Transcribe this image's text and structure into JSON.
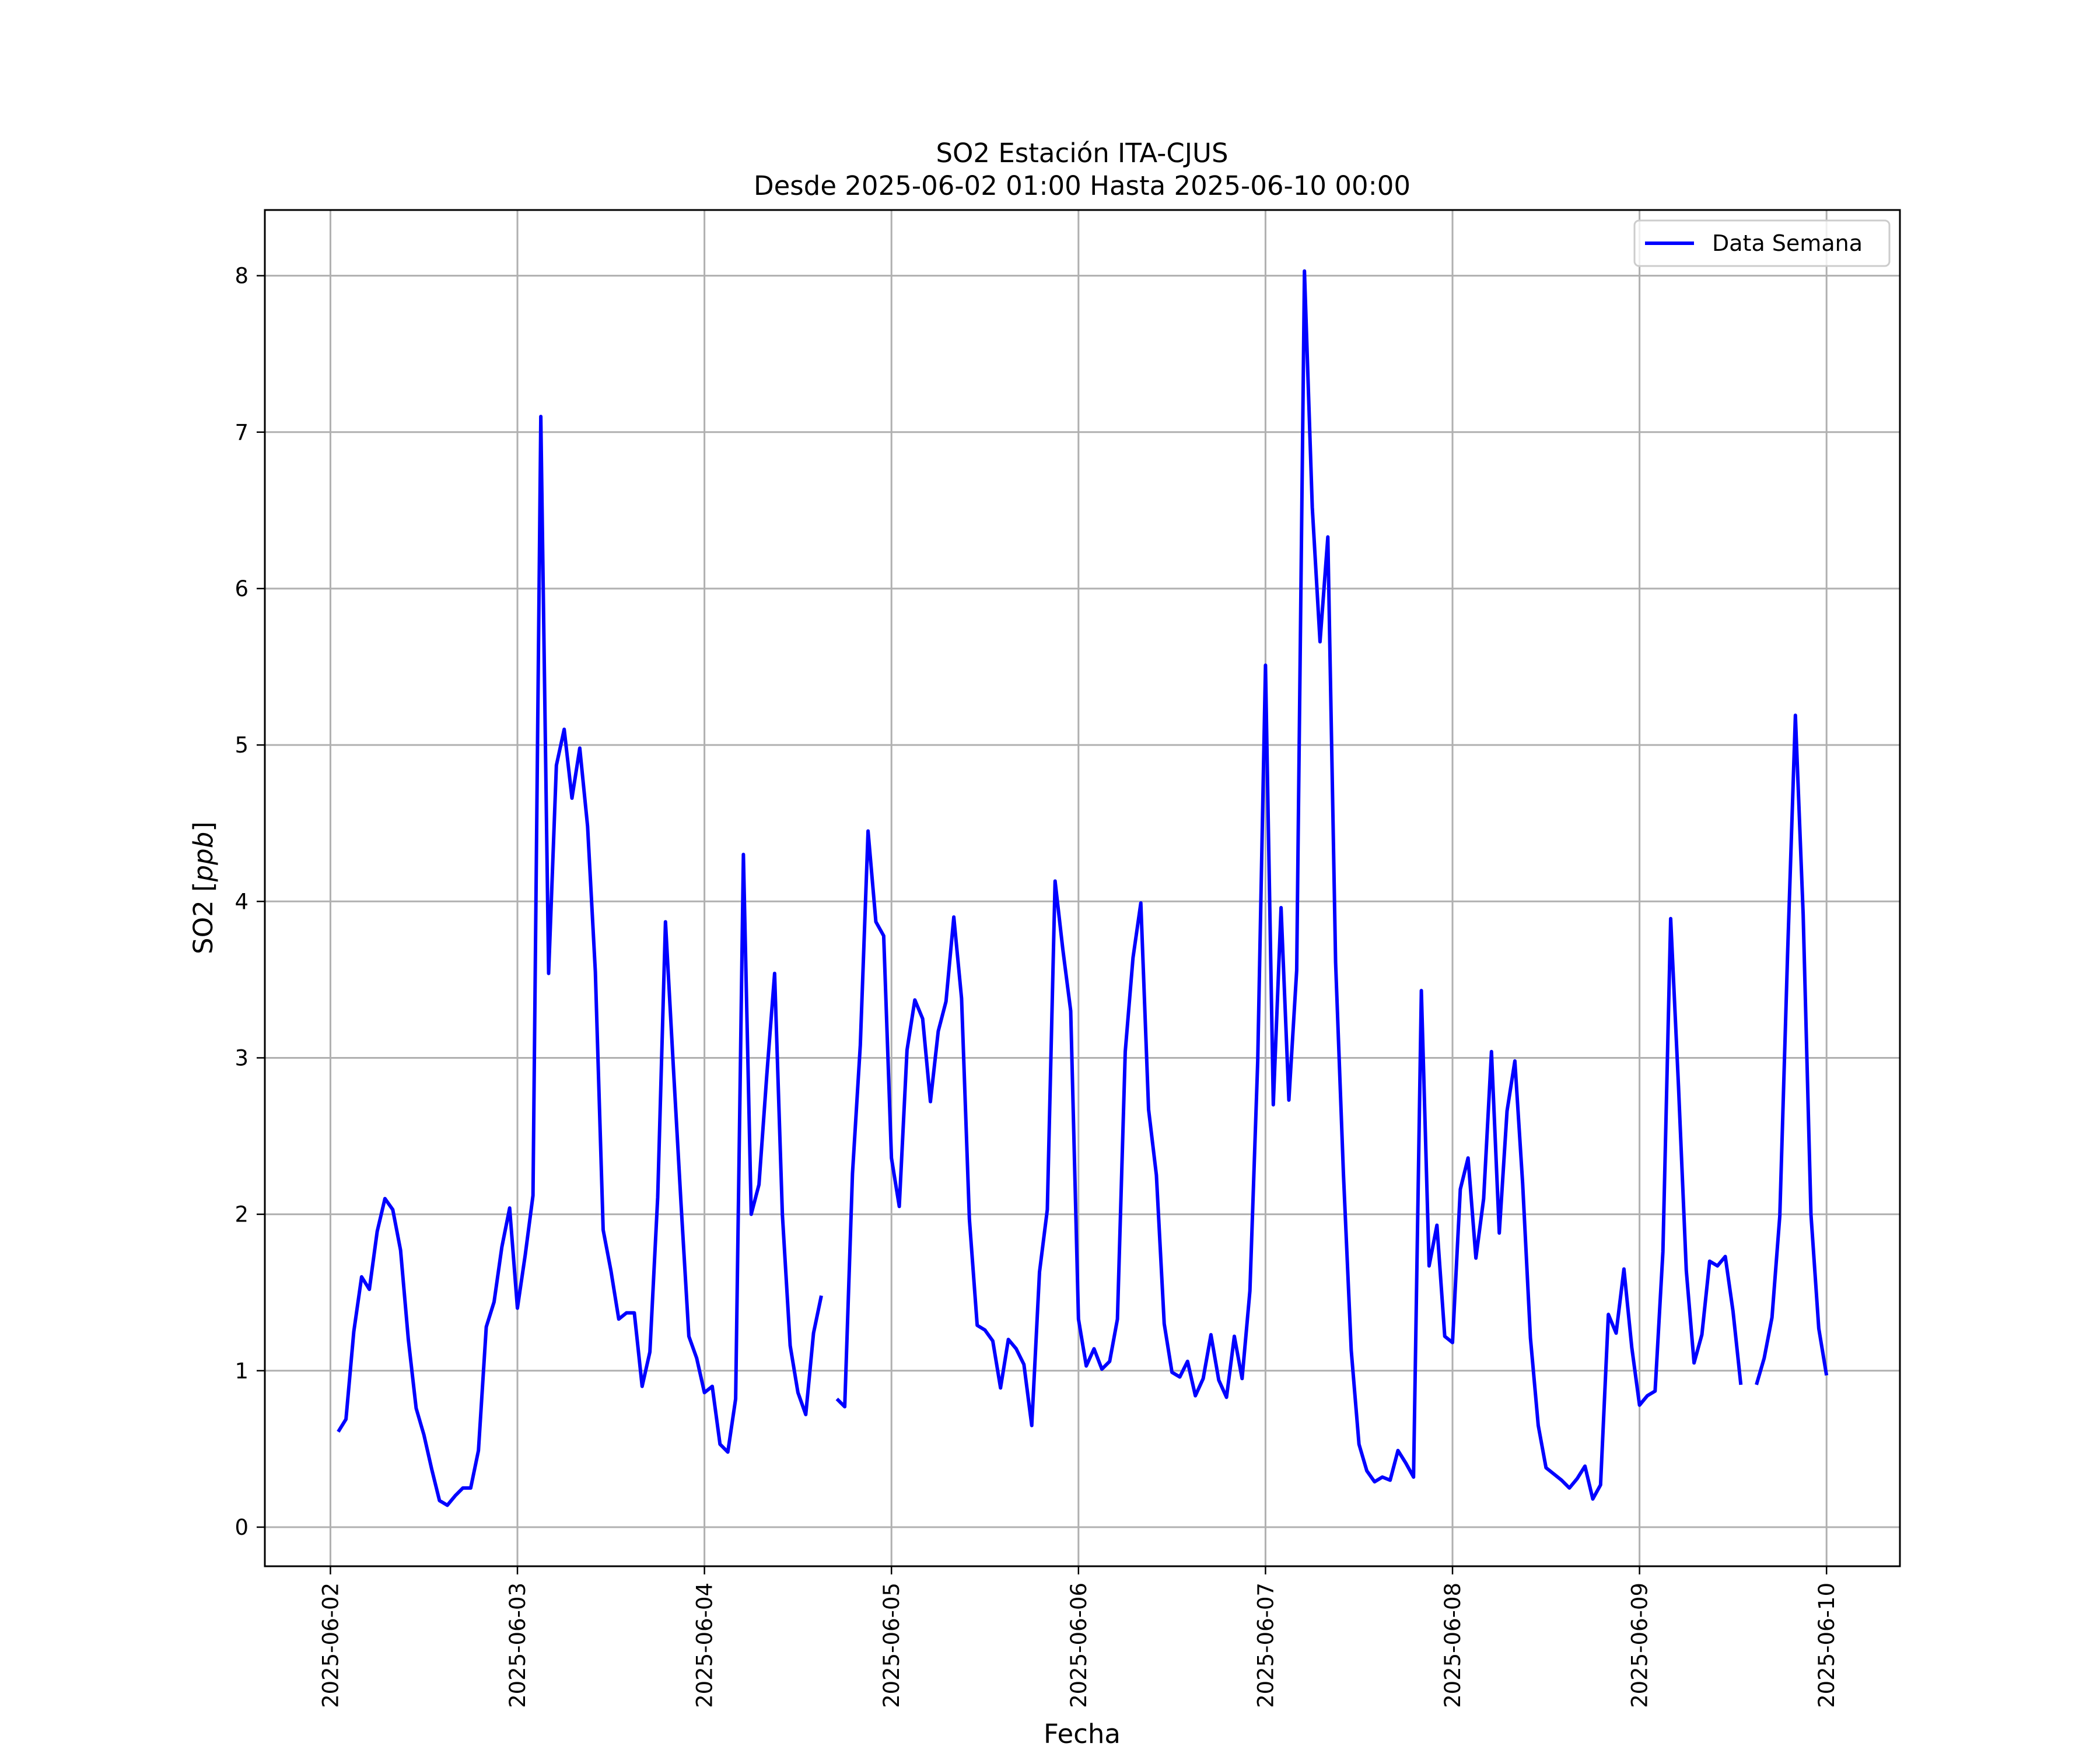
{
  "chart_data": {
    "type": "line",
    "title": "SO2 Estación ITA-CJUS",
    "subtitle": "Desde 2025-06-02 01:00 Hasta 2025-06-10 00:00",
    "xlabel": "Fecha",
    "ylabel": "SO2 [ppb]",
    "ylabel_prefix": "SO2 [",
    "ylabel_unit": "ppb",
    "ylabel_suffix": "]",
    "x_start": "2025-06-02 00:00",
    "xlim": [
      "2025-06-01 15:35",
      "2025-06-10 09:25"
    ],
    "ylim": [
      -0.25,
      8.42
    ],
    "x_ticks": [
      "2025-06-02",
      "2025-06-03",
      "2025-06-04",
      "2025-06-05",
      "2025-06-06",
      "2025-06-07",
      "2025-06-08",
      "2025-06-09",
      "2025-06-10"
    ],
    "y_ticks": [
      "0",
      "1",
      "2",
      "3",
      "4",
      "5",
      "6",
      "7",
      "8"
    ],
    "grid": true,
    "legend_position": "top-right",
    "color": "#0000ff",
    "series": [
      {
        "name": "Data Semana",
        "points": [
          [
            "2025-06-02 01:00",
            0.61
          ],
          [
            "2025-06-02 02:00",
            0.69
          ],
          [
            "2025-06-02 03:00",
            1.25
          ],
          [
            "2025-06-02 04:00",
            1.6
          ],
          [
            "2025-06-02 05:00",
            1.52
          ],
          [
            "2025-06-02 06:00",
            1.89
          ],
          [
            "2025-06-02 07:00",
            2.1
          ],
          [
            "2025-06-02 08:00",
            2.03
          ],
          [
            "2025-06-02 09:00",
            1.77
          ],
          [
            "2025-06-02 10:00",
            1.2
          ],
          [
            "2025-06-02 11:00",
            0.76
          ],
          [
            "2025-06-02 12:00",
            0.59
          ],
          [
            "2025-06-02 13:00",
            0.37
          ],
          [
            "2025-06-02 14:00",
            0.17
          ],
          [
            "2025-06-02 15:00",
            0.14
          ],
          [
            "2025-06-02 16:00",
            0.2
          ],
          [
            "2025-06-02 17:00",
            0.25
          ],
          [
            "2025-06-02 18:00",
            0.25
          ],
          [
            "2025-06-02 19:00",
            0.49
          ],
          [
            "2025-06-02 20:00",
            1.28
          ],
          [
            "2025-06-02 21:00",
            1.44
          ],
          [
            "2025-06-02 22:00",
            1.79
          ],
          [
            "2025-06-02 23:00",
            2.04
          ],
          [
            "2025-06-03 00:00",
            1.4
          ],
          [
            "2025-06-03 01:00",
            1.74
          ],
          [
            "2025-06-03 02:00",
            2.12
          ],
          [
            "2025-06-03 03:00",
            7.1
          ],
          [
            "2025-06-03 04:00",
            3.54
          ],
          [
            "2025-06-03 05:00",
            4.87
          ],
          [
            "2025-06-03 06:00",
            5.1
          ],
          [
            "2025-06-03 07:00",
            4.66
          ],
          [
            "2025-06-03 08:00",
            4.98
          ],
          [
            "2025-06-03 09:00",
            4.48
          ],
          [
            "2025-06-03 10:00",
            3.55
          ],
          [
            "2025-06-03 11:00",
            1.9
          ],
          [
            "2025-06-03 12:00",
            1.64
          ],
          [
            "2025-06-03 13:00",
            1.33
          ],
          [
            "2025-06-03 14:00",
            1.37
          ],
          [
            "2025-06-03 15:00",
            1.37
          ],
          [
            "2025-06-03 16:00",
            0.9
          ],
          [
            "2025-06-03 17:00",
            1.12
          ],
          [
            "2025-06-03 18:00",
            2.11
          ],
          [
            "2025-06-03 19:00",
            3.87
          ],
          [
            "2025-06-03 20:00",
            2.95
          ],
          [
            "2025-06-03 21:00",
            2.06
          ],
          [
            "2025-06-03 22:00",
            1.22
          ],
          [
            "2025-06-03 23:00",
            1.08
          ],
          [
            "2025-06-04 00:00",
            0.86
          ],
          [
            "2025-06-04 01:00",
            0.9
          ],
          [
            "2025-06-04 02:00",
            0.53
          ],
          [
            "2025-06-04 03:00",
            0.48
          ],
          [
            "2025-06-04 04:00",
            0.82
          ],
          [
            "2025-06-04 05:00",
            4.3
          ],
          [
            "2025-06-04 06:00",
            2.0
          ],
          [
            "2025-06-04 07:00",
            2.19
          ],
          [
            "2025-06-04 08:00",
            2.89
          ],
          [
            "2025-06-04 09:00",
            3.54
          ],
          [
            "2025-06-04 10:00",
            2.0
          ],
          [
            "2025-06-04 11:00",
            1.16
          ],
          [
            "2025-06-04 12:00",
            0.86
          ],
          [
            "2025-06-04 13:00",
            0.72
          ],
          [
            "2025-06-04 14:00",
            1.24
          ],
          [
            "2025-06-04 15:00",
            1.48
          ],
          [
            "2025-06-04 16:00",
            null
          ],
          [
            "2025-06-04 17:00",
            0.82
          ],
          [
            "2025-06-04 18:00",
            0.77
          ],
          [
            "2025-06-04 19:00",
            2.26
          ],
          [
            "2025-06-04 20:00",
            3.08
          ],
          [
            "2025-06-04 21:00",
            4.45
          ],
          [
            "2025-06-04 22:00",
            3.87
          ],
          [
            "2025-06-04 23:00",
            3.78
          ],
          [
            "2025-06-05 00:00",
            2.36
          ],
          [
            "2025-06-05 01:00",
            2.05
          ],
          [
            "2025-06-05 02:00",
            3.05
          ],
          [
            "2025-06-05 03:00",
            3.37
          ],
          [
            "2025-06-05 04:00",
            3.25
          ],
          [
            "2025-06-05 05:00",
            2.72
          ],
          [
            "2025-06-05 06:00",
            3.17
          ],
          [
            "2025-06-05 07:00",
            3.36
          ],
          [
            "2025-06-05 08:00",
            3.9
          ],
          [
            "2025-06-05 09:00",
            3.38
          ],
          [
            "2025-06-05 10:00",
            1.97
          ],
          [
            "2025-06-05 11:00",
            1.29
          ],
          [
            "2025-06-05 12:00",
            1.26
          ],
          [
            "2025-06-05 13:00",
            1.19
          ],
          [
            "2025-06-05 14:00",
            0.89
          ],
          [
            "2025-06-05 15:00",
            1.2
          ],
          [
            "2025-06-05 16:00",
            1.14
          ],
          [
            "2025-06-05 17:00",
            1.04
          ],
          [
            "2025-06-05 18:00",
            0.65
          ],
          [
            "2025-06-05 19:00",
            1.63
          ],
          [
            "2025-06-05 20:00",
            2.03
          ],
          [
            "2025-06-05 21:00",
            4.13
          ],
          [
            "2025-06-05 22:00",
            3.69
          ],
          [
            "2025-06-05 23:00",
            3.3
          ],
          [
            "2025-06-06 00:00",
            1.33
          ],
          [
            "2025-06-06 01:00",
            1.03
          ],
          [
            "2025-06-06 02:00",
            1.14
          ],
          [
            "2025-06-06 03:00",
            1.01
          ],
          [
            "2025-06-06 04:00",
            1.06
          ],
          [
            "2025-06-06 05:00",
            1.33
          ],
          [
            "2025-06-06 06:00",
            3.04
          ],
          [
            "2025-06-06 07:00",
            3.64
          ],
          [
            "2025-06-06 08:00",
            3.99
          ],
          [
            "2025-06-06 09:00",
            2.67
          ],
          [
            "2025-06-06 10:00",
            2.25
          ],
          [
            "2025-06-06 11:00",
            1.3
          ],
          [
            "2025-06-06 12:00",
            0.99
          ],
          [
            "2025-06-06 13:00",
            0.96
          ],
          [
            "2025-06-06 14:00",
            1.06
          ],
          [
            "2025-06-06 15:00",
            0.84
          ],
          [
            "2025-06-06 16:00",
            0.95
          ],
          [
            "2025-06-06 17:00",
            1.23
          ],
          [
            "2025-06-06 18:00",
            0.94
          ],
          [
            "2025-06-06 19:00",
            0.83
          ],
          [
            "2025-06-06 20:00",
            1.22
          ],
          [
            "2025-06-06 21:00",
            0.95
          ],
          [
            "2025-06-06 22:00",
            1.51
          ],
          [
            "2025-06-06 23:00",
            2.98
          ],
          [
            "2025-06-07 00:00",
            5.51
          ],
          [
            "2025-06-07 01:00",
            2.7
          ],
          [
            "2025-06-07 02:00",
            3.96
          ],
          [
            "2025-06-07 03:00",
            2.73
          ],
          [
            "2025-06-07 04:00",
            3.56
          ],
          [
            "2025-06-07 05:00",
            8.03
          ],
          [
            "2025-06-07 06:00",
            6.52
          ],
          [
            "2025-06-07 07:00",
            5.66
          ],
          [
            "2025-06-07 08:00",
            6.33
          ],
          [
            "2025-06-07 09:00",
            3.61
          ],
          [
            "2025-06-07 10:00",
            2.26
          ],
          [
            "2025-06-07 11:00",
            1.13
          ],
          [
            "2025-06-07 12:00",
            0.53
          ],
          [
            "2025-06-07 13:00",
            0.36
          ],
          [
            "2025-06-07 14:00",
            0.29
          ],
          [
            "2025-06-07 15:00",
            0.32
          ],
          [
            "2025-06-07 16:00",
            0.3
          ],
          [
            "2025-06-07 17:00",
            0.49
          ],
          [
            "2025-06-07 18:00",
            0.41
          ],
          [
            "2025-06-07 19:00",
            0.32
          ],
          [
            "2025-06-07 20:00",
            3.43
          ],
          [
            "2025-06-07 21:00",
            1.67
          ],
          [
            "2025-06-07 22:00",
            1.93
          ],
          [
            "2025-06-07 23:00",
            1.22
          ],
          [
            "2025-06-08 00:00",
            1.18
          ],
          [
            "2025-06-08 01:00",
            2.16
          ],
          [
            "2025-06-08 02:00",
            2.36
          ],
          [
            "2025-06-08 03:00",
            1.72
          ],
          [
            "2025-06-08 04:00",
            2.1
          ],
          [
            "2025-06-08 05:00",
            3.04
          ],
          [
            "2025-06-08 06:00",
            1.88
          ],
          [
            "2025-06-08 07:00",
            2.66
          ],
          [
            "2025-06-08 08:00",
            2.98
          ],
          [
            "2025-06-08 09:00",
            2.2
          ],
          [
            "2025-06-08 10:00",
            1.21
          ],
          [
            "2025-06-08 11:00",
            0.65
          ],
          [
            "2025-06-08 12:00",
            0.38
          ],
          [
            "2025-06-08 13:00",
            0.34
          ],
          [
            "2025-06-08 14:00",
            0.3
          ],
          [
            "2025-06-08 15:00",
            0.25
          ],
          [
            "2025-06-08 16:00",
            0.31
          ],
          [
            "2025-06-08 17:00",
            0.39
          ],
          [
            "2025-06-08 18:00",
            0.18
          ],
          [
            "2025-06-08 19:00",
            0.27
          ],
          [
            "2025-06-08 20:00",
            1.36
          ],
          [
            "2025-06-08 21:00",
            1.24
          ],
          [
            "2025-06-08 22:00",
            1.65
          ],
          [
            "2025-06-08 23:00",
            1.15
          ],
          [
            "2025-06-09 00:00",
            0.78
          ],
          [
            "2025-06-09 01:00",
            0.84
          ],
          [
            "2025-06-09 02:00",
            0.87
          ],
          [
            "2025-06-09 03:00",
            1.76
          ],
          [
            "2025-06-09 04:00",
            3.89
          ],
          [
            "2025-06-09 05:00",
            2.82
          ],
          [
            "2025-06-09 06:00",
            1.64
          ],
          [
            "2025-06-09 07:00",
            1.05
          ],
          [
            "2025-06-09 08:00",
            1.23
          ],
          [
            "2025-06-09 09:00",
            1.7
          ],
          [
            "2025-06-09 10:00",
            1.67
          ],
          [
            "2025-06-09 11:00",
            1.73
          ],
          [
            "2025-06-09 12:00",
            1.38
          ],
          [
            "2025-06-09 13:00",
            0.91
          ],
          [
            "2025-06-09 14:00",
            null
          ],
          [
            "2025-06-09 15:00",
            0.91
          ],
          [
            "2025-06-09 16:00",
            1.08
          ],
          [
            "2025-06-09 17:00",
            1.34
          ],
          [
            "2025-06-09 18:00",
            1.99
          ],
          [
            "2025-06-09 19:00",
            3.66
          ],
          [
            "2025-06-09 20:00",
            5.19
          ],
          [
            "2025-06-09 21:00",
            3.92
          ],
          [
            "2025-06-09 22:00",
            2.0
          ],
          [
            "2025-06-09 23:00",
            1.27
          ],
          [
            "2025-06-10 00:00",
            0.97
          ]
        ]
      }
    ]
  }
}
